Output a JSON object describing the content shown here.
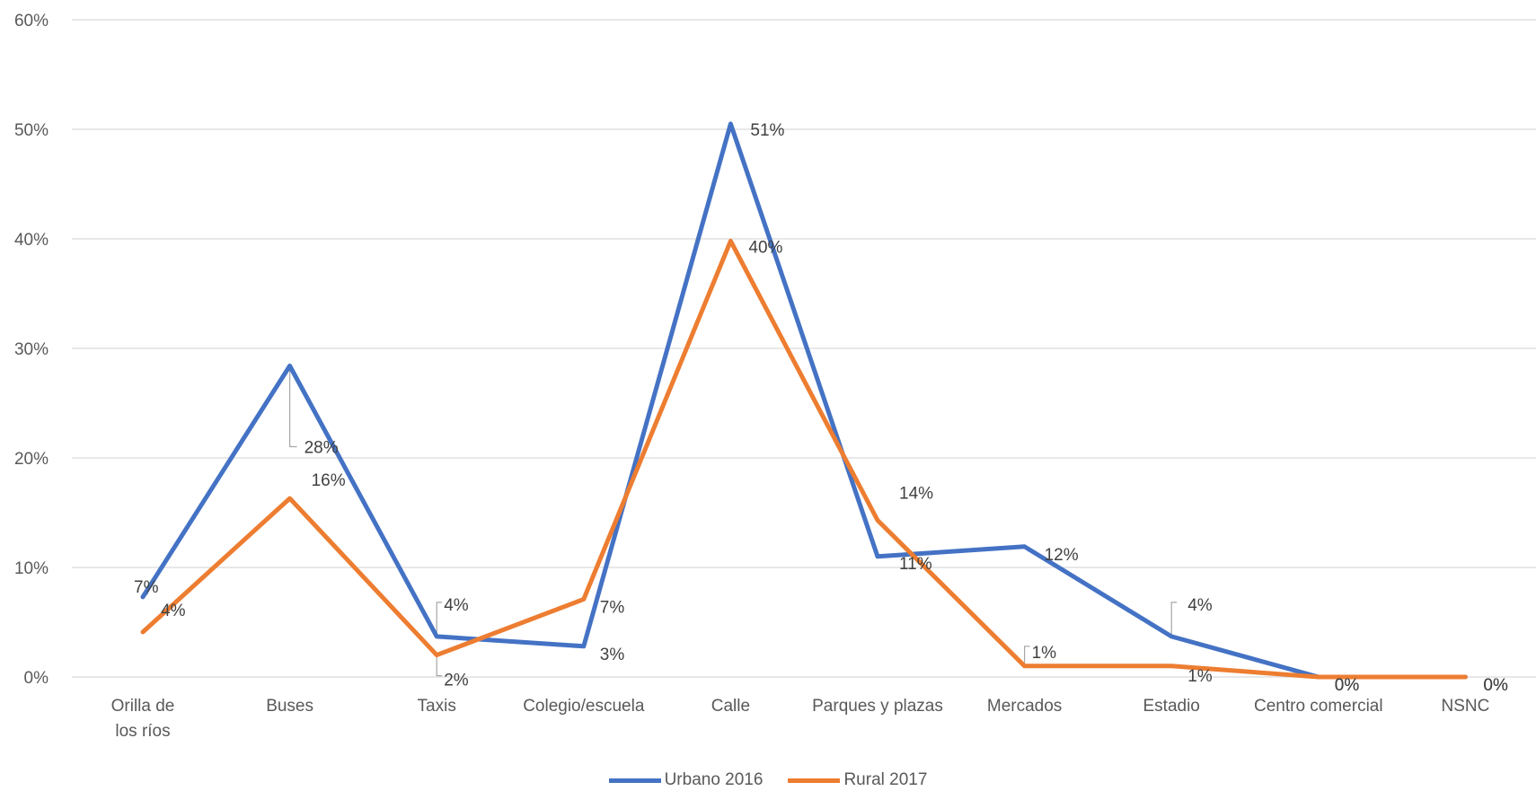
{
  "chart_data": {
    "type": "line",
    "categories": [
      "Orilla de los ríos",
      "Buses",
      "Taxis",
      "Colegio/escuela",
      "Calle",
      "Parques y plazas",
      "Mercados",
      "Estadio",
      "Centro comercial",
      "NSNC"
    ],
    "series": [
      {
        "name": "Urbano 2016",
        "color": "#4472C4",
        "values": [
          7.3,
          28.4,
          3.7,
          2.8,
          50.5,
          11.0,
          11.9,
          3.7,
          0.0,
          0.0
        ],
        "labels": [
          "7%",
          "28%",
          "4%",
          "3%",
          "51%",
          "11%",
          "12%",
          "4%",
          "0%",
          "0%"
        ]
      },
      {
        "name": "Rural 2017",
        "color": "#ED7D31",
        "values": [
          4.1,
          16.3,
          2.0,
          7.1,
          39.8,
          14.3,
          1.0,
          1.0,
          0.0,
          0.0
        ],
        "labels": [
          "4%",
          "16%",
          "2%",
          "7%",
          "40%",
          "14%",
          "1%",
          "1%",
          "0%",
          "0%"
        ]
      }
    ],
    "yticks": [
      "0%",
      "10%",
      "20%",
      "30%",
      "40%",
      "50%",
      "60%"
    ],
    "ylim": [
      0,
      60
    ],
    "grid": true,
    "legend_position": "bottom"
  }
}
